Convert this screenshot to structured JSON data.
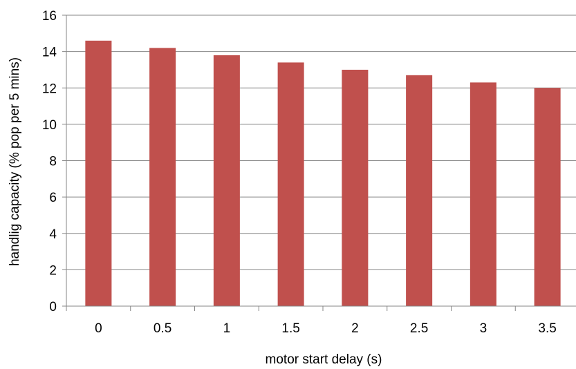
{
  "chart_data": {
    "type": "bar",
    "title": "",
    "xlabel": "motor start delay (s)",
    "ylabel": "handlig capacity (% pop per 5 mins)",
    "categories": [
      "0",
      "0.5",
      "1",
      "1.5",
      "2",
      "2.5",
      "3",
      "3.5"
    ],
    "values": [
      14.6,
      14.2,
      13.8,
      13.4,
      13.0,
      12.7,
      12.3,
      12.0
    ],
    "ylim": [
      0,
      16
    ],
    "yticks": [
      "0",
      "2",
      "4",
      "6",
      "8",
      "10",
      "12",
      "14",
      "16"
    ],
    "grid": true,
    "legend": "none",
    "colors": {
      "bar": "#c0504d",
      "grid": "#868686",
      "axis": "#868686"
    }
  }
}
